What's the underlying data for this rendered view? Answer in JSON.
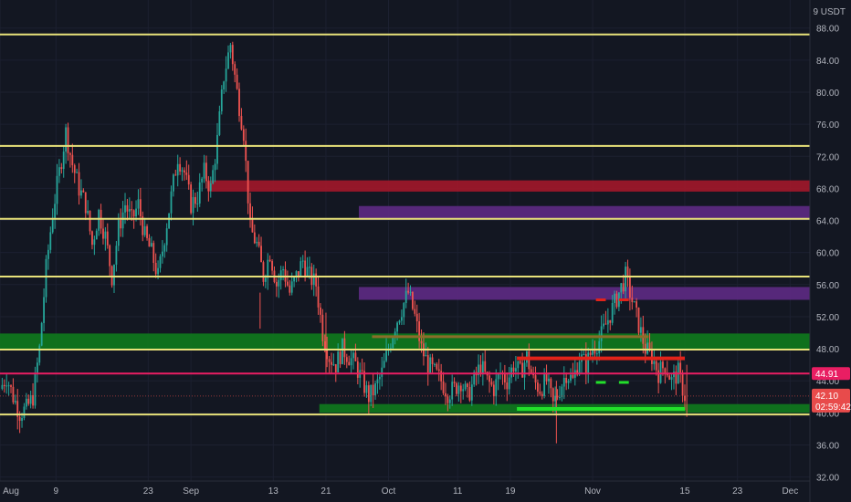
{
  "chart_data": {
    "type": "candlestick",
    "title": "",
    "currency": "USDT",
    "y_axis_label": "9 USDT",
    "ylim": [
      31.5,
      91.5
    ],
    "y_ticks": [
      "88.00",
      "84.00",
      "80.00",
      "76.00",
      "72.00",
      "68.00",
      "64.00",
      "60.00",
      "56.00",
      "52.00",
      "48.00",
      "44.00",
      "40.00",
      "36.00",
      "32.00"
    ],
    "y_tick_values": [
      88,
      84,
      80,
      76,
      72,
      68,
      64,
      60,
      56,
      52,
      48,
      44,
      40,
      36,
      32
    ],
    "x_ticks": [
      {
        "label": "Aug",
        "day": 0
      },
      {
        "label": "9",
        "day": 8.5
      },
      {
        "label": "23",
        "day": 22.5
      },
      {
        "label": "Sep",
        "day": 29
      },
      {
        "label": "13",
        "day": 41.5
      },
      {
        "label": "21",
        "day": 49.5
      },
      {
        "label": "Oct",
        "day": 59
      },
      {
        "label": "11",
        "day": 69.5
      },
      {
        "label": "19",
        "day": 77.5
      },
      {
        "label": "Nov",
        "day": 90
      },
      {
        "label": "15",
        "day": 104
      },
      {
        "label": "23",
        "day": 112
      },
      {
        "label": "Dec",
        "day": 120
      }
    ],
    "x_range_days": [
      0,
      123
    ],
    "price_path": [
      [
        0,
        43
      ],
      [
        1,
        44.5
      ],
      [
        2,
        42
      ],
      [
        3,
        40
      ],
      [
        4,
        40.5
      ],
      [
        5,
        42
      ],
      [
        6,
        48
      ],
      [
        7,
        58
      ],
      [
        8,
        65
      ],
      [
        9,
        70
      ],
      [
        10,
        75
      ],
      [
        11,
        71
      ],
      [
        12,
        68
      ],
      [
        13,
        66
      ],
      [
        14,
        61
      ],
      [
        15,
        65
      ],
      [
        16,
        62
      ],
      [
        17,
        57
      ],
      [
        18,
        63
      ],
      [
        19,
        66
      ],
      [
        20,
        64
      ],
      [
        21,
        66
      ],
      [
        22,
        62
      ],
      [
        23,
        60
      ],
      [
        24,
        57
      ],
      [
        25,
        62
      ],
      [
        26,
        67
      ],
      [
        27,
        72
      ],
      [
        28,
        70
      ],
      [
        29,
        66
      ],
      [
        30,
        67
      ],
      [
        31,
        70
      ],
      [
        32,
        68
      ],
      [
        33,
        74
      ],
      [
        34,
        82
      ],
      [
        35,
        86
      ],
      [
        36,
        80
      ],
      [
        37,
        75
      ],
      [
        38,
        63
      ],
      [
        39,
        61
      ],
      [
        40,
        57
      ],
      [
        41,
        60
      ],
      [
        42,
        56
      ],
      [
        43,
        58
      ],
      [
        44,
        55
      ],
      [
        45,
        57
      ],
      [
        46,
        59
      ],
      [
        47,
        57
      ],
      [
        48,
        56
      ],
      [
        49,
        50
      ],
      [
        50,
        47
      ],
      [
        51,
        46
      ],
      [
        52,
        48
      ],
      [
        53,
        47
      ],
      [
        54,
        46
      ],
      [
        55,
        44
      ],
      [
        56,
        42
      ],
      [
        57,
        43
      ],
      [
        58,
        45
      ],
      [
        59,
        48
      ],
      [
        60,
        51
      ],
      [
        61,
        53
      ],
      [
        62,
        55
      ],
      [
        63,
        52
      ],
      [
        64,
        48
      ],
      [
        65,
        46
      ],
      [
        66,
        45
      ],
      [
        67,
        44
      ],
      [
        68,
        42.5
      ],
      [
        69,
        43
      ],
      [
        70,
        44
      ],
      [
        71,
        42
      ],
      [
        72,
        44
      ],
      [
        73,
        46
      ],
      [
        74,
        44
      ],
      [
        75,
        43
      ],
      [
        76,
        45
      ],
      [
        77,
        44
      ],
      [
        78,
        46
      ],
      [
        79,
        45
      ],
      [
        80,
        47
      ],
      [
        81,
        44
      ],
      [
        82,
        43
      ],
      [
        83,
        44
      ],
      [
        84,
        41
      ],
      [
        85,
        43
      ],
      [
        86,
        45
      ],
      [
        87,
        44
      ],
      [
        88,
        47
      ],
      [
        89,
        46
      ],
      [
        90,
        48
      ],
      [
        91,
        49
      ],
      [
        92,
        51
      ],
      [
        93,
        53
      ],
      [
        94,
        55
      ],
      [
        95,
        57
      ],
      [
        96,
        54
      ],
      [
        97,
        51
      ],
      [
        98,
        48
      ],
      [
        99,
        47
      ],
      [
        100,
        45
      ],
      [
        101,
        46
      ],
      [
        102,
        44
      ],
      [
        103,
        45
      ],
      [
        104,
        42.1
      ]
    ],
    "horizontal_lines": [
      {
        "price": 87.2,
        "color": "#e8e27a"
      },
      {
        "price": 73.3,
        "color": "#e8e27a"
      },
      {
        "price": 64.2,
        "color": "#e8e27a"
      },
      {
        "price": 57.0,
        "color": "#e8e27a"
      },
      {
        "price": 47.9,
        "color": "#e8e27a"
      },
      {
        "price": 39.8,
        "color": "#e8e27a"
      },
      {
        "price": 44.91,
        "color": "#e91e63"
      }
    ],
    "zones": [
      {
        "from_day": 31.5,
        "to_day": 123,
        "top": 69.0,
        "bottom": 67.6,
        "color": "#a3172a"
      },
      {
        "from_day": 54.5,
        "to_day": 123,
        "top": 65.8,
        "bottom": 64.1,
        "color": "#5e2a84"
      },
      {
        "from_day": 54.5,
        "to_day": 123,
        "top": 55.7,
        "bottom": 54.1,
        "color": "#5e2a84"
      },
      {
        "from_day": 0,
        "to_day": 123,
        "top": 49.9,
        "bottom": 48.0,
        "color": "#0f7a1d"
      },
      {
        "from_day": 48.5,
        "to_day": 123,
        "top": 41.1,
        "bottom": 40.0,
        "color": "#0f7a1d"
      }
    ],
    "segments": [
      {
        "from_day": 56.5,
        "to_day": 98.5,
        "price": 49.5,
        "color": "#8a6d2a",
        "width": 3
      },
      {
        "from_day": 78.5,
        "to_day": 104,
        "price": 46.8,
        "color": "#e2231a",
        "width": 4
      },
      {
        "from_day": 78.5,
        "to_day": 104,
        "price": 40.5,
        "color": "#22e02a",
        "width": 4
      }
    ],
    "markers": [
      {
        "from_day": 90.5,
        "to_day": 92,
        "price": 54.1,
        "color": "#e2231a"
      },
      {
        "from_day": 94,
        "to_day": 95.5,
        "price": 54.1,
        "color": "#e2231a"
      },
      {
        "from_day": 90.5,
        "to_day": 92,
        "price": 43.8,
        "color": "#22e02a"
      },
      {
        "from_day": 94,
        "to_day": 95.5,
        "price": 43.8,
        "color": "#22e02a"
      }
    ],
    "price_badges": [
      {
        "label": "44.91",
        "price": 44.91,
        "color": "#e91e63"
      },
      {
        "label": "42.10",
        "sub": "02:59:42",
        "price": 42.1,
        "color": "#e84b4b"
      }
    ],
    "colors": {
      "background": "#131722",
      "up": "#26a69a",
      "down": "#ef5350",
      "axis_text": "#b2b5be"
    }
  }
}
